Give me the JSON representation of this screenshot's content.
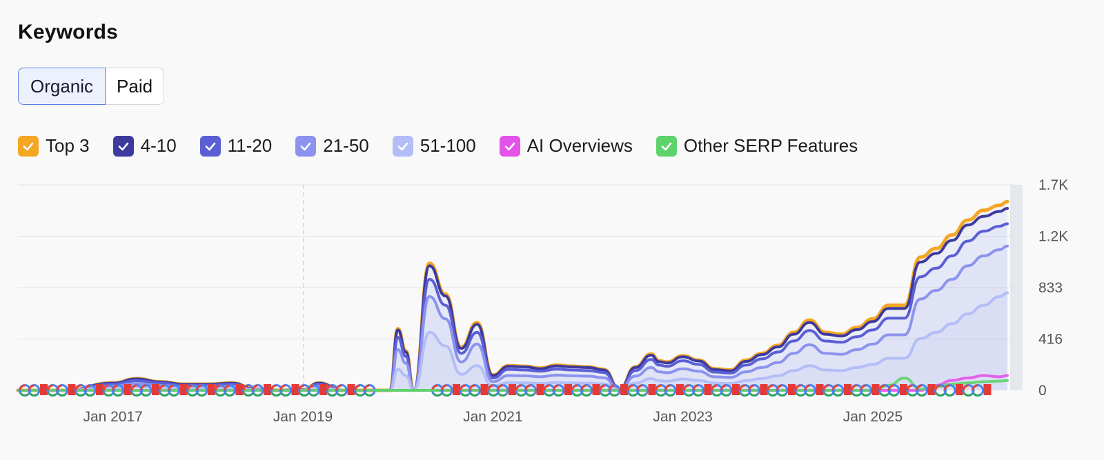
{
  "header": {
    "title": "Keywords"
  },
  "tabs": [
    {
      "label": "Organic",
      "active": true
    },
    {
      "label": "Paid",
      "active": false
    }
  ],
  "legend": [
    {
      "label": "Top 3",
      "color": "#f5a623",
      "checked": true
    },
    {
      "label": "4-10",
      "color": "#3d3a9e",
      "checked": true
    },
    {
      "label": "11-20",
      "color": "#5b5fd6",
      "checked": true
    },
    {
      "label": "21-50",
      "color": "#8c93ee",
      "checked": true
    },
    {
      "label": "51-100",
      "color": "#b3bdf7",
      "checked": true
    },
    {
      "label": "AI Overviews",
      "color": "#e453e8",
      "checked": true
    },
    {
      "label": "Other SERP Features",
      "color": "#5ed36b",
      "checked": true
    }
  ],
  "chart_data": {
    "type": "area",
    "x_ticks": [
      "Jan 2017",
      "Jan 2019",
      "Jan 2021",
      "Jan 2023",
      "Jan 2025"
    ],
    "y_ticks": [
      "0",
      "416",
      "833",
      "1.2K",
      "1.7K"
    ],
    "ylim": [
      0,
      1666
    ],
    "xlim": [
      "2016-01",
      "2026-06"
    ],
    "grid": true,
    "legend_position": "top-left",
    "x": [
      "2016-01",
      "2016-07",
      "2017-01",
      "2017-04",
      "2017-07",
      "2017-10",
      "2018-01",
      "2018-04",
      "2018-07",
      "2018-10",
      "2019-01",
      "2019-03",
      "2019-06",
      "2019-09",
      "2019-12",
      "2020-01",
      "2020-02",
      "2020-03",
      "2020-05",
      "2020-07",
      "2020-09",
      "2020-11",
      "2021-01",
      "2021-03",
      "2021-05",
      "2021-07",
      "2021-09",
      "2021-11",
      "2022-01",
      "2022-03",
      "2022-05",
      "2022-07",
      "2022-09",
      "2022-10",
      "2022-11",
      "2023-01",
      "2023-03",
      "2023-05",
      "2023-07",
      "2023-09",
      "2023-11",
      "2024-01",
      "2024-03",
      "2024-05",
      "2024-07",
      "2024-09",
      "2024-11",
      "2025-01",
      "2025-03",
      "2025-05",
      "2025-07",
      "2025-09",
      "2025-11",
      "2026-01",
      "2026-03",
      "2026-05",
      "2026-06"
    ],
    "series": [
      {
        "name": "Top 3",
        "values": [
          0,
          0,
          60,
          95,
          70,
          50,
          50,
          60,
          10,
          0,
          5,
          60,
          0,
          0,
          0,
          500,
          320,
          0,
          1030,
          780,
          350,
          550,
          125,
          200,
          195,
          180,
          205,
          195,
          190,
          170,
          10,
          190,
          295,
          240,
          230,
          280,
          245,
          175,
          165,
          245,
          300,
          365,
          470,
          570,
          470,
          455,
          510,
          580,
          690,
          690,
          1080,
          1150,
          1260,
          1380,
          1460,
          1500,
          1530
        ]
      },
      {
        "name": "4-10",
        "values": [
          0,
          0,
          58,
          92,
          68,
          48,
          48,
          58,
          10,
          0,
          5,
          58,
          0,
          0,
          0,
          490,
          310,
          0,
          1010,
          765,
          340,
          535,
          120,
          195,
          190,
          175,
          198,
          190,
          185,
          165,
          10,
          185,
          285,
          232,
          222,
          272,
          238,
          168,
          158,
          235,
          290,
          352,
          455,
          550,
          455,
          440,
          492,
          558,
          664,
          664,
          1040,
          1110,
          1215,
          1340,
          1410,
          1450,
          1475
        ]
      },
      {
        "name": "11-20",
        "values": [
          0,
          0,
          50,
          78,
          58,
          40,
          40,
          50,
          8,
          0,
          4,
          50,
          0,
          0,
          0,
          430,
          275,
          0,
          900,
          690,
          300,
          470,
          100,
          170,
          165,
          155,
          172,
          165,
          160,
          145,
          8,
          160,
          250,
          205,
          195,
          240,
          210,
          148,
          140,
          205,
          255,
          310,
          400,
          485,
          400,
          390,
          435,
          490,
          585,
          585,
          920,
          990,
          1090,
          1210,
          1290,
          1330,
          1350
        ]
      },
      {
        "name": "21-50",
        "values": [
          0,
          0,
          35,
          55,
          40,
          28,
          28,
          35,
          6,
          0,
          3,
          35,
          0,
          0,
          0,
          330,
          220,
          0,
          760,
          580,
          230,
          375,
          70,
          120,
          118,
          110,
          124,
          118,
          115,
          102,
          6,
          115,
          185,
          150,
          143,
          175,
          155,
          110,
          105,
          150,
          185,
          225,
          300,
          370,
          300,
          292,
          330,
          375,
          450,
          450,
          740,
          810,
          900,
          1010,
          1090,
          1140,
          1170
        ]
      },
      {
        "name": "51-100",
        "values": [
          0,
          0,
          18,
          30,
          22,
          15,
          15,
          18,
          3,
          0,
          2,
          18,
          0,
          0,
          0,
          170,
          120,
          0,
          470,
          360,
          130,
          200,
          35,
          62,
          60,
          56,
          63,
          60,
          58,
          52,
          3,
          58,
          95,
          78,
          74,
          92,
          80,
          58,
          55,
          78,
          96,
          118,
          160,
          200,
          165,
          160,
          185,
          210,
          260,
          260,
          420,
          470,
          540,
          620,
          690,
          760,
          790
        ]
      },
      {
        "name": "AI Overviews",
        "values": [
          0,
          0,
          0,
          0,
          0,
          0,
          0,
          0,
          0,
          0,
          0,
          0,
          0,
          0,
          0,
          0,
          0,
          0,
          0,
          0,
          0,
          0,
          0,
          0,
          0,
          0,
          0,
          0,
          0,
          0,
          0,
          0,
          0,
          0,
          0,
          0,
          0,
          0,
          0,
          0,
          0,
          0,
          0,
          0,
          0,
          0,
          0,
          0,
          0,
          0,
          0,
          40,
          80,
          100,
          120,
          110,
          120
        ]
      },
      {
        "name": "Other SERP Features",
        "values": [
          0,
          0,
          0,
          0,
          0,
          0,
          0,
          0,
          0,
          0,
          0,
          0,
          0,
          0,
          0,
          0,
          0,
          0,
          0,
          0,
          0,
          0,
          0,
          0,
          0,
          0,
          0,
          0,
          0,
          0,
          0,
          0,
          0,
          0,
          0,
          0,
          0,
          0,
          0,
          0,
          0,
          0,
          0,
          0,
          0,
          0,
          0,
          0,
          40,
          100,
          10,
          30,
          50,
          60,
          70,
          75,
          80
        ]
      }
    ]
  }
}
